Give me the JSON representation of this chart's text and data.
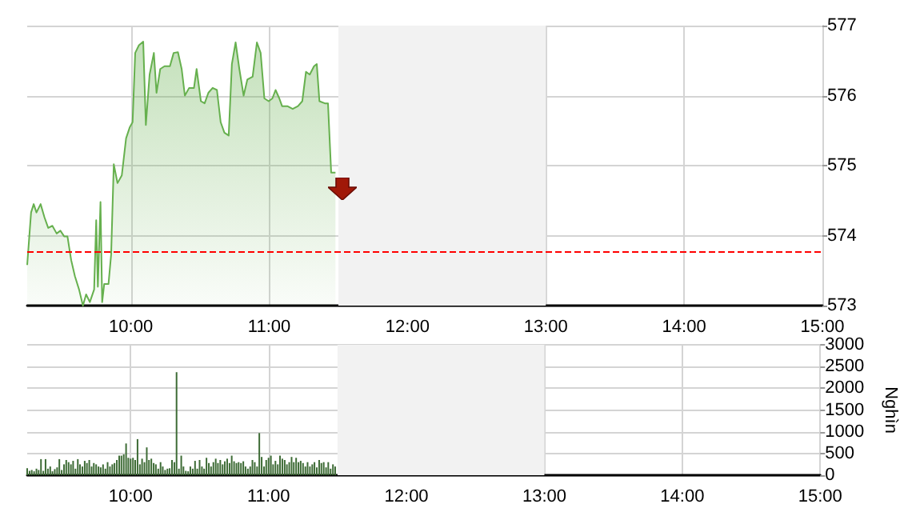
{
  "chart_data": [
    {
      "type": "area",
      "xlim": [
        9.25,
        15
      ],
      "ylim": [
        573,
        577
      ],
      "yticks": [
        573,
        574,
        575,
        576,
        577
      ],
      "xticks": [
        {
          "value": 10,
          "label": "10:00"
        },
        {
          "value": 11,
          "label": "11:00"
        },
        {
          "value": 12,
          "label": "12:00"
        },
        {
          "value": 13,
          "label": "13:00"
        },
        {
          "value": 14,
          "label": "14:00"
        },
        {
          "value": 15,
          "label": "15:00"
        }
      ],
      "grid": true,
      "marker": "none",
      "line_style": "solid",
      "series": [
        {
          "color": "#66b04e",
          "x": [
            9.25,
            9.278,
            9.297,
            9.317,
            9.347,
            9.375,
            9.402,
            9.432,
            9.463,
            9.49,
            9.517,
            9.541,
            9.568,
            9.595,
            9.625,
            9.653,
            9.676,
            9.703,
            9.734,
            9.749,
            9.761,
            9.78,
            9.792,
            9.807,
            9.838,
            9.857,
            9.876,
            9.903,
            9.934,
            9.965,
            9.992,
            10.012,
            10.031,
            10.058,
            10.089,
            10.108,
            10.135,
            10.166,
            10.185,
            10.212,
            10.243,
            10.282,
            10.309,
            10.34,
            10.367,
            10.39,
            10.421,
            10.456,
            10.475,
            10.506,
            10.533,
            10.56,
            10.591,
            10.622,
            10.649,
            10.676,
            10.707,
            10.73,
            10.757,
            10.784,
            10.815,
            10.842,
            10.88,
            10.911,
            10.938,
            10.965,
            10.996,
            11.023,
            11.046,
            11.073,
            11.093,
            11.131,
            11.17,
            11.208,
            11.239,
            11.266,
            11.293,
            11.324,
            11.344,
            11.363,
            11.402,
            11.425,
            11.448,
            11.479
          ],
          "values": [
            573.58,
            574.33,
            574.45,
            574.33,
            574.45,
            574.26,
            574.11,
            574.14,
            574.03,
            574.07,
            573.99,
            573.99,
            573.65,
            573.42,
            573.23,
            573.0,
            573.16,
            573.05,
            573.23,
            574.22,
            573.27,
            574.48,
            573.05,
            573.31,
            573.31,
            573.73,
            575.02,
            574.75,
            574.86,
            575.39,
            575.55,
            575.62,
            576.61,
            576.72,
            576.77,
            575.58,
            576.3,
            576.61,
            576.04,
            576.38,
            576.42,
            576.42,
            576.61,
            576.62,
            576.38,
            576.0,
            576.11,
            576.11,
            576.38,
            575.92,
            575.89,
            576.04,
            576.11,
            576.08,
            575.62,
            575.47,
            575.43,
            576.45,
            576.76,
            576.38,
            576.0,
            576.23,
            576.27,
            576.76,
            576.61,
            575.96,
            575.92,
            575.96,
            576.08,
            575.96,
            575.85,
            575.85,
            575.81,
            575.85,
            575.92,
            576.34,
            576.3,
            576.42,
            576.45,
            575.92,
            575.89,
            575.89,
            574.9,
            574.9
          ]
        }
      ],
      "ref_lines": [
        {
          "axis": "y",
          "value": 573.77,
          "color": "#ff0000",
          "line_style": "dashed"
        }
      ],
      "bands": [
        {
          "axis": "x",
          "from": 11.5,
          "to": 13,
          "color": "#f2f2f2"
        }
      ]
    },
    {
      "type": "bar",
      "ylabel": "Nghìn",
      "xlim": [
        9.25,
        15
      ],
      "ylim": [
        0,
        3000
      ],
      "yticks": [
        0,
        500,
        1000,
        1500,
        2000,
        2500,
        3000
      ],
      "xticks": [
        {
          "value": 10,
          "label": "10:00"
        },
        {
          "value": 11,
          "label": "11:00"
        },
        {
          "value": 12,
          "label": "12:00"
        },
        {
          "value": 13,
          "label": "13:00"
        },
        {
          "value": 14,
          "label": "14:00"
        },
        {
          "value": 15,
          "label": "15:00"
        }
      ],
      "grid": true,
      "series": [
        {
          "color": "#3d6b35",
          "x": [
            9.25,
            9.267,
            9.283,
            9.3,
            9.317,
            9.333,
            9.35,
            9.367,
            9.383,
            9.4,
            9.417,
            9.433,
            9.45,
            9.467,
            9.483,
            9.5,
            9.517,
            9.533,
            9.55,
            9.567,
            9.583,
            9.6,
            9.617,
            9.633,
            9.65,
            9.667,
            9.683,
            9.7,
            9.717,
            9.733,
            9.75,
            9.767,
            9.783,
            9.8,
            9.817,
            9.833,
            9.85,
            9.867,
            9.883,
            9.9,
            9.917,
            9.933,
            9.95,
            9.967,
            9.983,
            10.0,
            10.017,
            10.033,
            10.05,
            10.067,
            10.083,
            10.1,
            10.117,
            10.133,
            10.15,
            10.167,
            10.183,
            10.2,
            10.217,
            10.233,
            10.25,
            10.267,
            10.283,
            10.3,
            10.317,
            10.333,
            10.35,
            10.367,
            10.383,
            10.4,
            10.417,
            10.433,
            10.45,
            10.467,
            10.483,
            10.5,
            10.517,
            10.533,
            10.55,
            10.567,
            10.583,
            10.6,
            10.617,
            10.633,
            10.65,
            10.667,
            10.683,
            10.7,
            10.717,
            10.733,
            10.75,
            10.767,
            10.783,
            10.8,
            10.817,
            10.833,
            10.85,
            10.867,
            10.883,
            10.9,
            10.917,
            10.933,
            10.95,
            10.967,
            10.983,
            11.0,
            11.017,
            11.033,
            11.05,
            11.067,
            11.083,
            11.1,
            11.117,
            11.133,
            11.15,
            11.167,
            11.183,
            11.2,
            11.217,
            11.233,
            11.25,
            11.267,
            11.283,
            11.3,
            11.317,
            11.333,
            11.35,
            11.367,
            11.383,
            11.4,
            11.417,
            11.433,
            11.45,
            11.467,
            11.483
          ],
          "values": [
            160,
            100,
            120,
            90,
            150,
            120,
            370,
            100,
            370,
            150,
            200,
            90,
            140,
            180,
            370,
            120,
            250,
            350,
            300,
            250,
            330,
            150,
            370,
            250,
            200,
            330,
            280,
            350,
            200,
            280,
            250,
            200,
            180,
            250,
            150,
            300,
            200,
            250,
            280,
            350,
            450,
            450,
            480,
            730,
            400,
            380,
            400,
            350,
            830,
            250,
            380,
            300,
            640,
            350,
            380,
            280,
            250,
            150,
            300,
            200,
            120,
            150,
            160,
            350,
            300,
            2370,
            150,
            450,
            200,
            100,
            90,
            200,
            150,
            330,
            150,
            350,
            200,
            150,
            400,
            280,
            200,
            300,
            380,
            280,
            350,
            250,
            320,
            380,
            280,
            450,
            320,
            280,
            300,
            280,
            320,
            200,
            150,
            200,
            350,
            300,
            200,
            970,
            420,
            200,
            350,
            400,
            450,
            250,
            330,
            250,
            450,
            380,
            350,
            250,
            300,
            420,
            300,
            400,
            300,
            330,
            280,
            200,
            300,
            200,
            250,
            300,
            180,
            350,
            280,
            300,
            180,
            300,
            150,
            250,
            200
          ]
        }
      ],
      "bands": [
        {
          "axis": "x",
          "from": 11.5,
          "to": 13,
          "color": "#f2f2f2"
        }
      ]
    }
  ]
}
